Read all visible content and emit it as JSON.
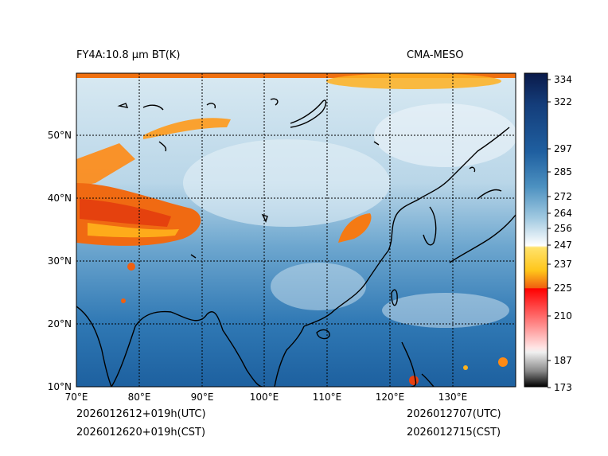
{
  "header": {
    "title_left": "FY4A:10.8 μm BT(K)",
    "title_right": "CMA-MESO"
  },
  "map": {
    "lon_labels": [
      "70°E",
      "80°E",
      "90°E",
      "100°E",
      "110°E",
      "120°E",
      "130°E"
    ],
    "lat_labels": [
      "50°N",
      "40°N",
      "30°N",
      "20°N",
      "10°N"
    ],
    "extent": {
      "lon_min": 70,
      "lon_max": 140,
      "lat_min": 10,
      "lat_max": 60
    }
  },
  "colorbar": {
    "ticks": [
      "334",
      "322",
      "297",
      "285",
      "272",
      "264",
      "256",
      "247",
      "237",
      "225",
      "210",
      "187",
      "173"
    ],
    "range": [
      173,
      336
    ],
    "colors": {
      "top": "#0a1a4a",
      "upper": "#1f5fa0",
      "mid": "#9fc8e0",
      "white": "#ffffff",
      "yellow": "#ffd21a",
      "orange": "#f06010",
      "red": "#ff0000",
      "pink": "#ffd8d8",
      "gray": "#888888",
      "black": "#000000"
    }
  },
  "footer": {
    "init_utc": "2026012612+019h(UTC)",
    "init_cst": "2026012620+019h(CST)",
    "valid_utc": "2026012707(UTC)",
    "valid_cst": "2026012715(CST)"
  }
}
